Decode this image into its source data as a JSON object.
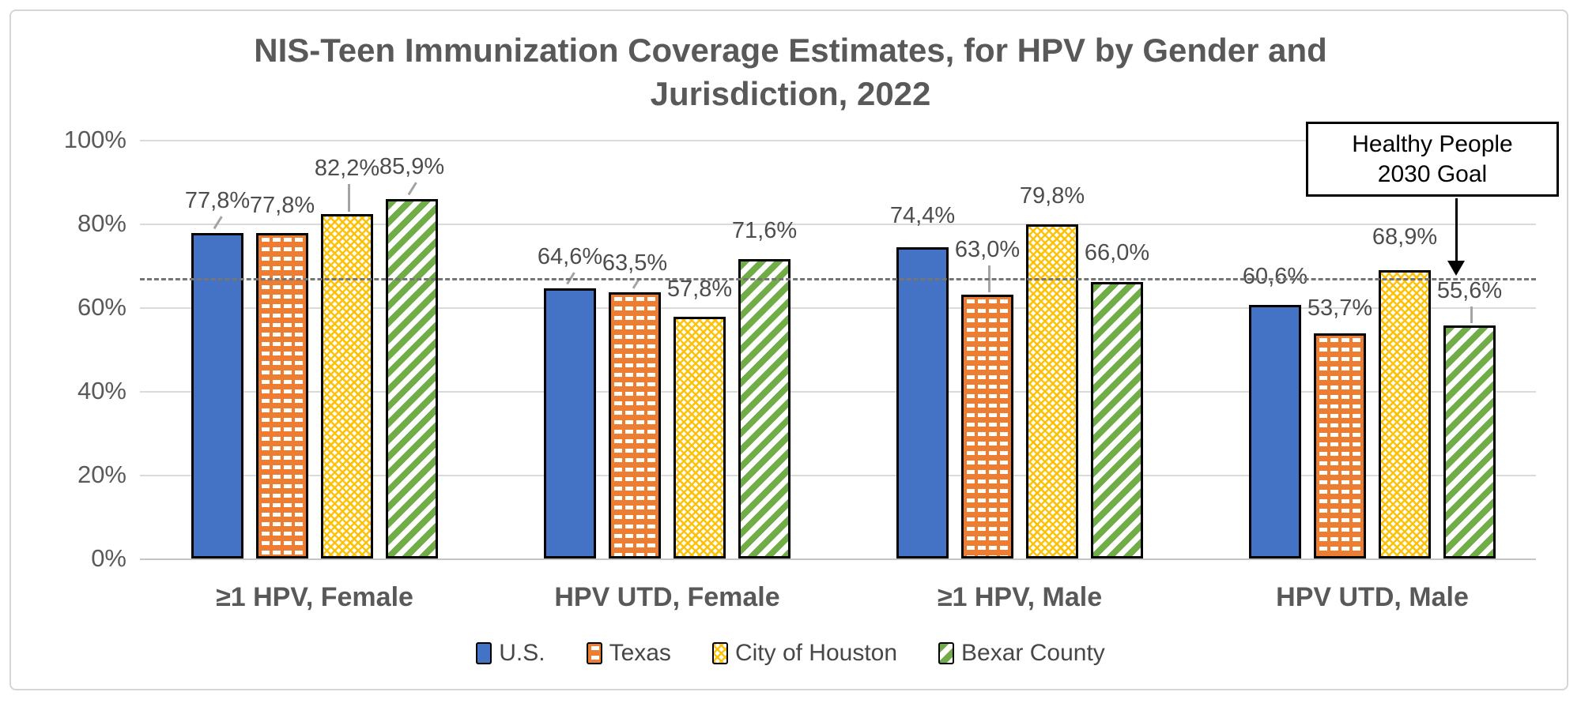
{
  "title": "NIS-Teen Immunization Coverage Estimates, for HPV by Gender and Jurisdiction, 2022",
  "goal_annotation": {
    "label": "Healthy People 2030 Goal"
  },
  "chart_data": {
    "type": "bar",
    "title": "NIS-Teen Immunization Coverage Estimates, for HPV by Gender and Jurisdiction, 2022",
    "categories": [
      "≥1 HPV, Female",
      "HPV UTD, Female",
      "≥1 HPV, Male",
      "HPV UTD, Male"
    ],
    "y_axis": {
      "ticks": [
        "100%",
        "80%",
        "60%",
        "40%",
        "20%",
        "0%"
      ],
      "min": 0,
      "max": 100,
      "grid": true
    },
    "goal_line": {
      "label": "Healthy People 2030 Goal",
      "value": 67,
      "style": "dashed"
    },
    "legend_position": "bottom",
    "series": [
      {
        "name": "U.S.",
        "color": "#4472C4",
        "pattern": "solid",
        "values": [
          77.8,
          64.6,
          74.4,
          60.6
        ],
        "labels": [
          "77,8%",
          "64,6%",
          "74,4%",
          "60,6%"
        ],
        "leaders": [
          "diag",
          "diag",
          null,
          null
        ],
        "label_gaps": [
          24,
          23,
          23,
          19
        ]
      },
      {
        "name": "Texas",
        "color": "#ED7D31",
        "pattern": "dashes",
        "values": [
          77.8,
          63.5,
          63.0,
          53.7
        ],
        "labels": [
          "77,8%",
          "63,5%",
          "63,0%",
          "53,7%"
        ],
        "leaders": [
          null,
          "diag",
          "vert",
          null
        ],
        "label_gaps": [
          18,
          20,
          40,
          15
        ]
      },
      {
        "name": "City of Houston",
        "color": "#FFC000",
        "pattern": "dots",
        "values": [
          82.2,
          57.8,
          79.8,
          68.9
        ],
        "labels": [
          "82,2%",
          "57,8%",
          "79,8%",
          "68,9%"
        ],
        "leaders": [
          "vert",
          null,
          null,
          null
        ],
        "label_gaps": [
          41,
          18,
          19,
          25
        ]
      },
      {
        "name": "Bexar County",
        "color": "#70AD47",
        "pattern": "diagonal",
        "values": [
          85.9,
          71.6,
          66.0,
          55.6
        ],
        "labels": [
          "85,9%",
          "71,6%",
          "66,0%",
          "55,6%"
        ],
        "leaders": [
          "diag",
          null,
          null,
          "vert"
        ],
        "label_gaps": [
          24,
          19,
          20,
          27
        ]
      }
    ]
  }
}
